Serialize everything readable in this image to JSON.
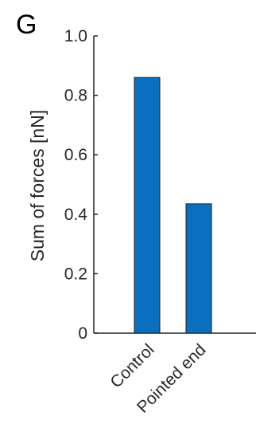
{
  "panel_label": "G",
  "chart_data": {
    "type": "bar",
    "categories": [
      "Control",
      "Pointed end"
    ],
    "values": [
      0.86,
      0.435
    ],
    "title": "",
    "xlabel": "",
    "ylabel": "Sum of forces [nN]",
    "ylim": [
      0,
      1.0
    ],
    "yticks": [
      0,
      0.2,
      0.4,
      0.6,
      0.8,
      1.0
    ],
    "ytick_labels": [
      "0",
      "0.2",
      "0.4",
      "0.6",
      "0.8",
      "1.0"
    ],
    "bar_color": "#0b6fbf",
    "grid": false,
    "legend": "none"
  }
}
